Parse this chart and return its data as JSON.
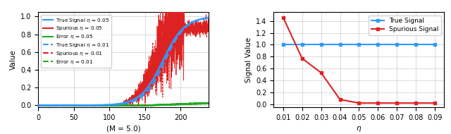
{
  "left_plot": {
    "xlabel": "(M = 5.0)",
    "ylabel": "Value",
    "xlim": [
      0,
      240
    ],
    "ylim": [
      -0.02,
      1.05
    ],
    "xticks": [
      0,
      50,
      100,
      150,
      200
    ],
    "yticks": [
      0.0,
      0.2,
      0.4,
      0.6,
      0.8,
      1.0
    ],
    "legend": [
      {
        "label": "True Signal $\\eta$ = 0.05",
        "color": "#3399ff",
        "ls": "solid"
      },
      {
        "label": "Spurious $\\eta$ = 0.05",
        "color": "#dd2222",
        "ls": "solid"
      },
      {
        "label": "Error $\\eta$ = 0.05",
        "color": "#22aa22",
        "ls": "solid"
      },
      {
        "label": "True Signal $\\eta$ = 0.01",
        "color": "#3399ff",
        "ls": "dashed"
      },
      {
        "label": "Spurious $\\eta$ = 0.01",
        "color": "#dd2222",
        "ls": "dashed"
      },
      {
        "label": "Error $\\eta$ = 0.01",
        "color": "#22aa22",
        "ls": "dashed"
      }
    ]
  },
  "right_plot": {
    "xlabel": "$\\eta$",
    "ylabel": "Signal Value",
    "xlim": [
      0.005,
      0.095
    ],
    "ylim": [
      -0.05,
      1.55
    ],
    "xticks": [
      0.01,
      0.02,
      0.03,
      0.04,
      0.05,
      0.06,
      0.07,
      0.08,
      0.09
    ],
    "yticks": [
      0.0,
      0.2,
      0.4,
      0.6,
      0.8,
      1.0,
      1.2,
      1.4
    ],
    "true_signal": {
      "x": [
        0.01,
        0.02,
        0.03,
        0.04,
        0.05,
        0.06,
        0.07,
        0.08,
        0.09
      ],
      "y": [
        1.0,
        1.0,
        1.0,
        1.0,
        1.0,
        1.0,
        1.0,
        1.0,
        1.0
      ],
      "color": "#3399ff",
      "label": "True Signal"
    },
    "spurious_signal": {
      "x": [
        0.01,
        0.02,
        0.03,
        0.04,
        0.05,
        0.06,
        0.07,
        0.08,
        0.09
      ],
      "y": [
        1.46,
        0.77,
        0.53,
        0.08,
        0.02,
        0.02,
        0.02,
        0.02,
        0.02
      ],
      "color": "#dd2222",
      "label": "Spurious Signal"
    }
  }
}
